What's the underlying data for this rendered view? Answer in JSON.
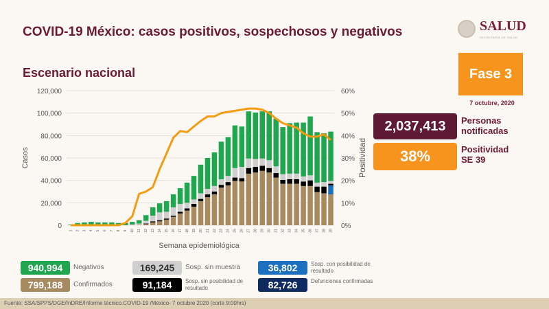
{
  "header": {
    "title": "COVID-19 México: casos positivos, sospechosos y negativos",
    "subtitle": "Escenario nacional",
    "logo_text": "SALUD",
    "logo_sub": "SECRETARÍA DE SALUD"
  },
  "side": {
    "fase": "Fase 3",
    "date": "7 octubre, 2020",
    "notificadas_value": "2,037,413",
    "notificadas_label1": "Personas",
    "notificadas_label2": "notificadas",
    "positividad_value": "38%",
    "positividad_label1": "Positividad",
    "positividad_label2": "SE 39"
  },
  "legend": [
    {
      "value": "940,994",
      "label": "Negativos",
      "color": "#1fa64e"
    },
    {
      "value": "799,188",
      "label": "Confirmados",
      "color": "#a88a60"
    },
    {
      "value": "169,245",
      "label": "Sosp. sin muestra",
      "color": "#cfcfcf",
      "text_color": "#333"
    },
    {
      "value": "91,184",
      "label": "Sosp. sin posibilidad de resultado",
      "color": "#000000"
    },
    {
      "value": "36,802",
      "label": "Sosp. con posibilidad de resultado",
      "color": "#1d6fc0"
    },
    {
      "value": "82,726",
      "label": "Defunciones confirmadas",
      "color": "#0f2a5e"
    }
  ],
  "footer": "Fuente: SSA/SPPS/DGE/InDRE/Informe técnico.COVID-19 /México- 7 octubre 2020 (corte 9:00hrs)",
  "chart_data": {
    "type": "bar",
    "stacked": true,
    "xlabel": "Semana epidemiológica",
    "ylabel": "Casos",
    "y2label": "Positividad",
    "ylim": [
      0,
      120000
    ],
    "y2lim": [
      0,
      60
    ],
    "yticks": [
      "0",
      "20,000",
      "40,000",
      "60,000",
      "80,000",
      "100,000",
      "120,000"
    ],
    "y2ticks": [
      "0%",
      "10%",
      "20%",
      "30%",
      "40%",
      "50%",
      "60%"
    ],
    "grid": true,
    "categories": [
      "1",
      "2",
      "3",
      "4",
      "5",
      "6",
      "7",
      "8",
      "9",
      "10",
      "11",
      "12",
      "13",
      "14",
      "15",
      "16",
      "17",
      "18",
      "19",
      "20",
      "21",
      "22",
      "23",
      "24",
      "25",
      "26",
      "27",
      "28",
      "29",
      "30",
      "31",
      "32",
      "33",
      "34",
      "35",
      "36",
      "37",
      "38",
      "39"
    ],
    "series": [
      {
        "name": "Confirmados",
        "color": "#a88a60",
        "values": [
          0,
          0,
          0,
          0,
          0,
          0,
          0,
          0,
          0,
          200,
          500,
          1000,
          2500,
          3500,
          5000,
          7500,
          10500,
          13000,
          16500,
          21500,
          25000,
          27500,
          33500,
          35500,
          39500,
          39000,
          46000,
          47000,
          48500,
          47000,
          42500,
          37000,
          37000,
          37000,
          35000,
          35000,
          29500,
          28500,
          27500
        ]
      },
      {
        "name": "Sosp. con posibilidad de resultado",
        "color": "#1d6fc0",
        "values": [
          0,
          0,
          0,
          0,
          0,
          0,
          0,
          0,
          0,
          0,
          0,
          0,
          0,
          0,
          0,
          0,
          0,
          0,
          0,
          0,
          0,
          0,
          0,
          0,
          0,
          0,
          0,
          0,
          0,
          0,
          0,
          0,
          0,
          0,
          0,
          0,
          0,
          0,
          8000
        ]
      },
      {
        "name": "Sosp. sin posibilidad de resultado",
        "color": "#000000",
        "values": [
          0,
          0,
          0,
          0,
          0,
          0,
          0,
          0,
          0,
          0,
          0,
          500,
          1000,
          1000,
          1000,
          1000,
          1500,
          2000,
          2500,
          2000,
          2500,
          2500,
          2500,
          3000,
          3000,
          3000,
          5000,
          5000,
          4500,
          4000,
          4000,
          3500,
          4000,
          4000,
          4000,
          5000,
          5000,
          6000,
          1500
        ]
      },
      {
        "name": "Sosp. sin muestra",
        "color": "#cfcfcf",
        "values": [
          0,
          0,
          0,
          0,
          0,
          0,
          0,
          0,
          0,
          500,
          1000,
          2500,
          5000,
          7000,
          6000,
          7500,
          7000,
          5000,
          4000,
          5000,
          5000,
          5000,
          5000,
          5500,
          8500,
          10000,
          8500,
          7000,
          6500,
          7000,
          6000,
          5000,
          5000,
          5000,
          4500,
          4500,
          3500,
          4000,
          2500
        ]
      },
      {
        "name": "Negativos",
        "color": "#1fa64e",
        "values": [
          500,
          2000,
          2500,
          3000,
          2500,
          2500,
          2500,
          2000,
          2000,
          2300,
          3000,
          5000,
          7500,
          8000,
          9500,
          11500,
          14000,
          18000,
          21000,
          25500,
          27500,
          30000,
          33500,
          34500,
          38000,
          36000,
          42000,
          41500,
          42000,
          43500,
          42500,
          42000,
          45000,
          45500,
          48000,
          52500,
          45000,
          43500,
          44000
        ]
      }
    ],
    "line": {
      "name": "Positividad",
      "color": "#f39c12",
      "unit": "%",
      "values": [
        0,
        0,
        0,
        0,
        0,
        0,
        0,
        0,
        1,
        4,
        14,
        15,
        17,
        25,
        32,
        39,
        42,
        41.5,
        44,
        46.5,
        48.5,
        48.5,
        50,
        50.5,
        51,
        51.5,
        52,
        52,
        51.5,
        50,
        47.5,
        45.5,
        44.5,
        43.5,
        41,
        39.5,
        39.5,
        40.5,
        38
      ]
    }
  }
}
